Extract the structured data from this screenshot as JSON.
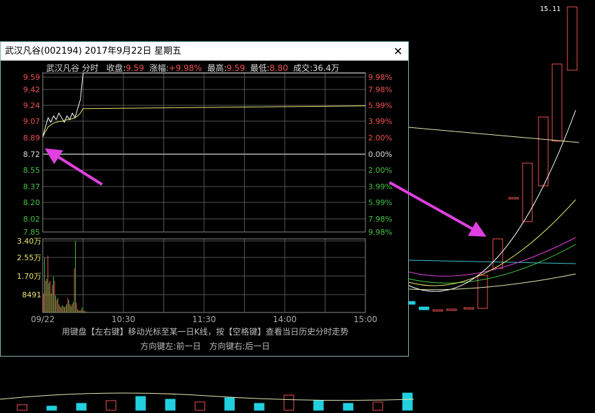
{
  "window": {
    "title": "武汉凡谷(002194) 2017年9月22日 星期五",
    "close_icon": "close-icon"
  },
  "header": {
    "name": "武汉凡谷 分时",
    "close_label": "收盘:",
    "close": "9.59",
    "change_label": "涨幅:",
    "change": "+9.98%",
    "high_label": "最高:",
    "high": "9.59",
    "low_label": "最低:",
    "low": "8.80",
    "volume_label": "成交:",
    "volume": "36.4万"
  },
  "background": {
    "top_price_label": "15.11"
  },
  "hints": {
    "line1": "用键盘【左右键】移动光标至某一日K线，按【空格键】查看当日历史分时走势",
    "line2": "方向键左:前一日　方向键右:后一日"
  },
  "colors": {
    "up": "#f05050",
    "down": "#40c040",
    "price_line": "#ffffff",
    "avg_line": "#e8e870",
    "grid": "#555555",
    "arrow": "#e040e0"
  },
  "chart_data": [
    {
      "type": "line",
      "yticks_left": [
        "9.59",
        "9.42",
        "9.24",
        "9.07",
        "8.89",
        "8.72",
        "8.55",
        "8.37",
        "8.20",
        "8.02",
        "7.85"
      ],
      "yticks_right": [
        "9.98%",
        "7.98%",
        "5.99%",
        "3.99%",
        "2.00%",
        "0.00%",
        "2.00%",
        "3.99%",
        "5.99%",
        "7.98%",
        "9.98%"
      ],
      "ylim": [
        7.85,
        9.59
      ],
      "xticks": [
        "09/22",
        "10:30",
        "11:30",
        "14:00",
        "15:00"
      ],
      "x_minutes": [
        0,
        2,
        4,
        6,
        8,
        10,
        12,
        14,
        16,
        18,
        20,
        22,
        24,
        26,
        28,
        30,
        240
      ],
      "price": [
        8.89,
        9.0,
        9.1,
        9.05,
        9.12,
        9.08,
        9.15,
        9.1,
        9.05,
        9.12,
        9.08,
        9.15,
        9.1,
        9.2,
        9.3,
        9.59,
        9.59
      ],
      "avg": [
        8.89,
        8.95,
        9.0,
        9.02,
        9.04,
        9.05,
        9.06,
        9.06,
        9.07,
        9.08,
        9.08,
        9.09,
        9.1,
        9.12,
        9.15,
        9.2,
        9.23
      ]
    },
    {
      "type": "bar",
      "yticks": [
        "3.40万",
        "2.55万",
        "1.70万",
        "8491"
      ],
      "ylim": [
        0,
        34000
      ],
      "volumes": [
        9000,
        26000,
        15000,
        16000,
        27000,
        14000,
        15000,
        9000,
        13000,
        17000,
        15000,
        8000,
        6000,
        7000,
        4000,
        3000,
        2500,
        3500,
        3000,
        2500,
        3000,
        4000,
        7000,
        6000,
        4000,
        3000,
        4000,
        5000,
        21000,
        34000,
        4500,
        1500,
        1000,
        900,
        1200,
        2500,
        1000,
        800,
        500,
        400
      ]
    }
  ]
}
